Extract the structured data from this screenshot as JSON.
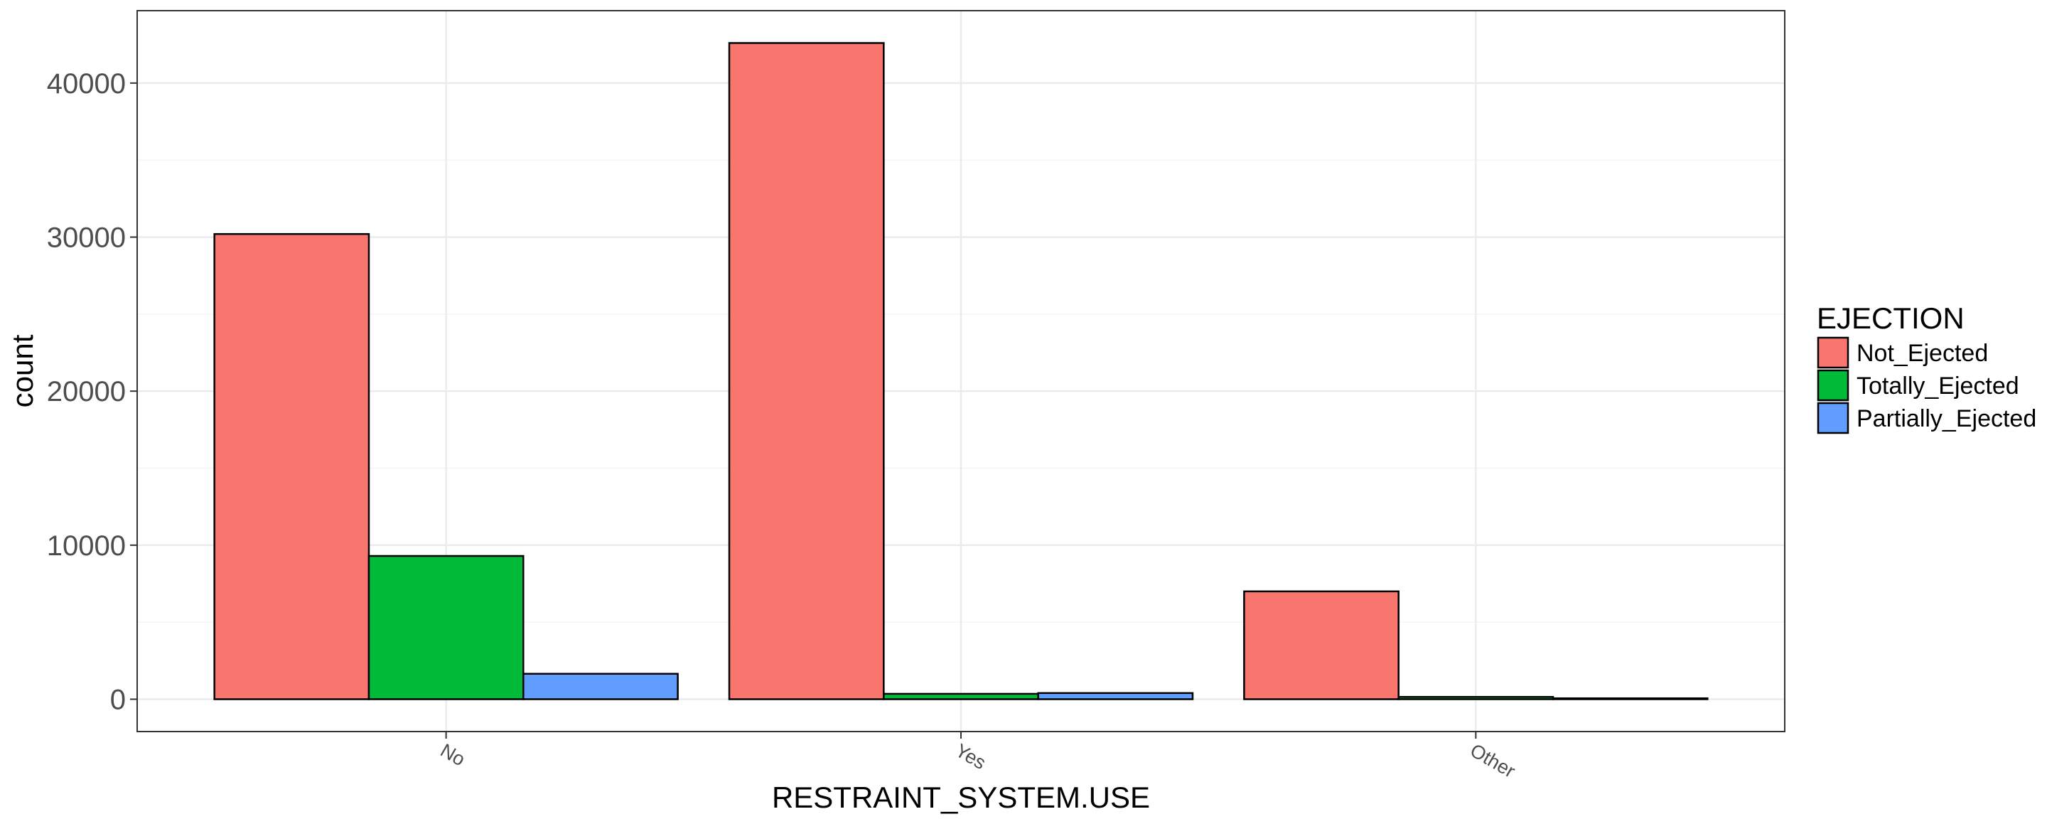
{
  "chart_data": {
    "type": "bar",
    "xlabel": "RESTRAINT_SYSTEM.USE",
    "ylabel": "count",
    "categories": [
      "No",
      "Yes",
      "Other"
    ],
    "series": [
      {
        "name": "Not_Ejected",
        "color": "#F8766D",
        "values": [
          30200,
          42600,
          7000
        ]
      },
      {
        "name": "Totally_Ejected",
        "color": "#00BA38",
        "values": [
          9300,
          350,
          150
        ]
      },
      {
        "name": "Partially_Ejected",
        "color": "#619CFF",
        "values": [
          1650,
          400,
          60
        ]
      }
    ],
    "ylim": [
      -2100,
      44700
    ],
    "yticks": [
      0,
      10000,
      20000,
      30000,
      40000
    ],
    "ytick_labels": [
      "0",
      "10000",
      "20000",
      "30000",
      "40000"
    ],
    "grid": true,
    "legend": {
      "title": "EJECTION",
      "position": "right"
    }
  }
}
